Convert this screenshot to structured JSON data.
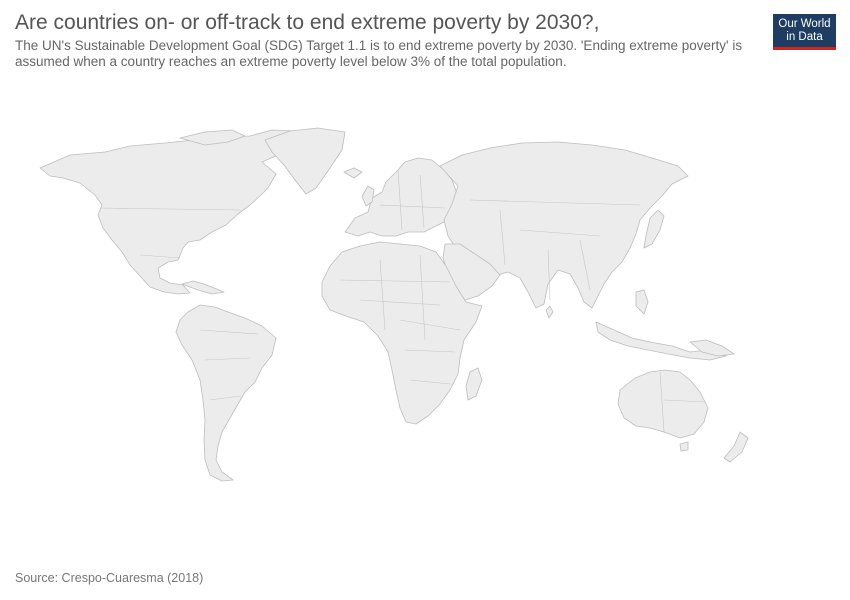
{
  "title": "Are countries on- or off-track to end extreme poverty by 2030?,",
  "subtitle": "The UN's Sustainable Development Goal (SDG) Target 1.1 is to end extreme poverty by 2030. 'Ending extreme poverty' is assumed when a country reaches an extreme poverty level below 3% of the total population.",
  "logo": {
    "line1": "Our World",
    "line2": "in Data",
    "background": "#1d3d63",
    "accent": "#ce261e"
  },
  "map": {
    "type": "world-choropleth",
    "land_color": "#ececec",
    "border_color": "#bdbdbd",
    "data_shown": false
  },
  "source": "Source: Crespo-Cuaresma (2018)"
}
